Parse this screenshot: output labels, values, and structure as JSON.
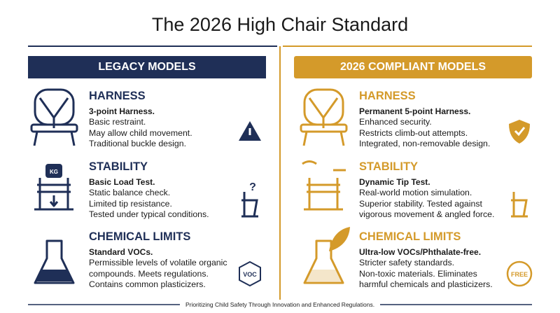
{
  "title": "The 2026 High Chair Standard",
  "columns": [
    {
      "header": "LEGACY MODELS",
      "sections": [
        {
          "heading": "HARNESS",
          "subheading": "3-point Harness.",
          "lines": [
            "Basic restraint.",
            "May allow child movement.",
            "Traditional buckle design."
          ]
        },
        {
          "heading": "STABILITY",
          "subheading": "Basic Load Test.",
          "lines": [
            "Static balance check.",
            "Limited tip resistance.",
            "Tested under typical conditions."
          ],
          "main_icon_text": "KG",
          "side_icon_text": "?"
        },
        {
          "heading": "CHEMICAL LIMITS",
          "subheading": "Standard VOCs.",
          "lines": [
            "Permissible levels of volatile organic",
            "compounds. Meets regulations.",
            "Contains common plasticizers."
          ],
          "side_icon_text": "VOC"
        }
      ]
    },
    {
      "header": "2026 COMPLIANT MODELS",
      "sections": [
        {
          "heading": "HARNESS",
          "subheading": "Permanent 5-point Harness.",
          "lines": [
            "Enhanced security.",
            "Restricts climb-out attempts.",
            "Integrated, non-removable design."
          ]
        },
        {
          "heading": "STABILITY",
          "subheading": "Dynamic Tip Test.",
          "lines": [
            "Real-world motion simulation.",
            "Superior stability. Tested against",
            "vigorous movement & angled force."
          ]
        },
        {
          "heading": "CHEMICAL LIMITS",
          "subheading": "Ultra-low VOCs/Phthalate-free.",
          "lines": [
            "Stricter safety standards.",
            "Non-toxic materials. Eliminates",
            "harmful chemicals and plasticizers."
          ],
          "side_icon_text": "FREE"
        }
      ]
    }
  ],
  "footer": "Prioritizing Child Safety Through Innovation and Enhanced Regulations."
}
